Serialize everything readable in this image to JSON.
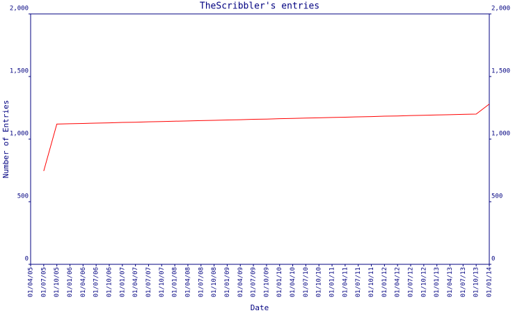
{
  "chart_data": {
    "type": "line",
    "title": "TheScribbler's entries",
    "x_label": "Date",
    "y_label": "Number of Entries",
    "categories": [
      "01/04/05",
      "01/07/05",
      "01/10/05",
      "01/01/06",
      "01/04/06",
      "01/07/06",
      "01/10/06",
      "01/01/07",
      "01/04/07",
      "01/07/07",
      "01/10/07",
      "01/01/08",
      "01/04/08",
      "01/07/08",
      "01/10/08",
      "01/01/09",
      "01/04/09",
      "01/07/09",
      "01/10/09",
      "01/01/10",
      "01/04/10",
      "01/07/10",
      "01/10/10",
      "01/01/11",
      "01/04/11",
      "01/07/11",
      "01/10/11",
      "01/01/12",
      "01/04/12",
      "01/07/12",
      "01/10/12",
      "01/01/13",
      "01/04/13",
      "01/07/13",
      "01/10/13",
      "01/01/14"
    ],
    "series": [
      {
        "name": "Entries",
        "color": "#ff0000",
        "values": [
          null,
          745,
          1120,
          1123,
          1125,
          1128,
          1130,
          1133,
          1135,
          1138,
          1140,
          1143,
          1145,
          1148,
          1150,
          1153,
          1155,
          1158,
          1160,
          1163,
          1165,
          1168,
          1170,
          1173,
          1175,
          1178,
          1180,
          1183,
          1185,
          1188,
          1190,
          1193,
          1195,
          1198,
          1200,
          1280
        ]
      }
    ],
    "ylim": [
      0,
      2000
    ],
    "yticks": [
      0,
      500,
      {
        "value": 1000,
        "label": "1,000"
      },
      {
        "value": 1500,
        "label": "1,500"
      },
      {
        "value": 2000,
        "label": "2,000"
      }
    ],
    "right_axis_mirror": true
  }
}
